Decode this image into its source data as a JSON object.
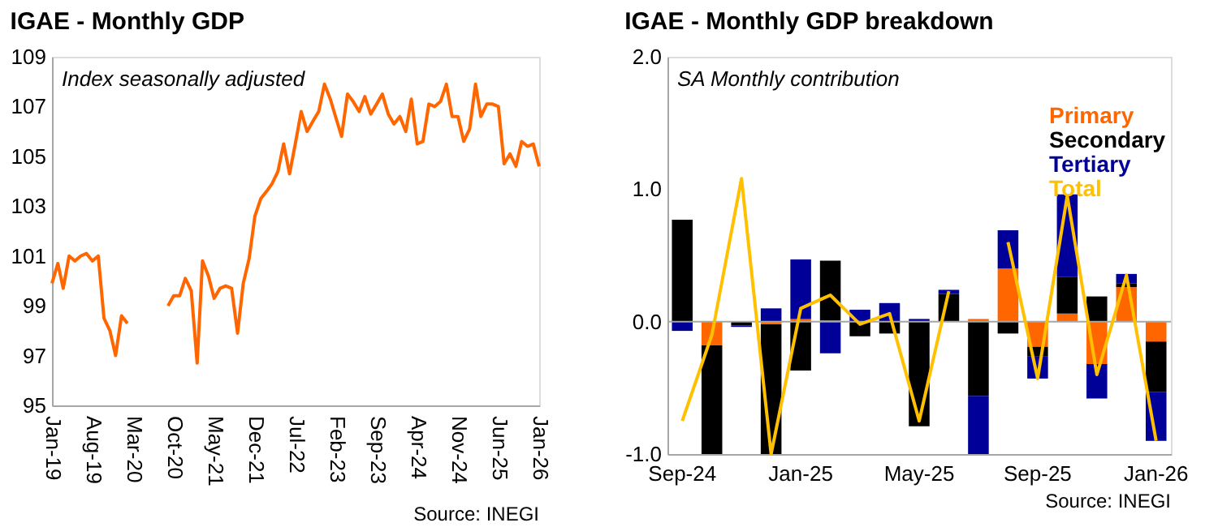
{
  "chart_data": [
    {
      "type": "line",
      "title": "IGAE - Monthly GDP",
      "annotations": [
        "Index seasonally adjusted",
        "Source: INEGI"
      ],
      "x": [
        "2019-01",
        "2019-02",
        "2019-03",
        "2019-04",
        "2019-05",
        "2019-06",
        "2019-07",
        "2019-08",
        "2019-09",
        "2019-10",
        "2019-11",
        "2019-12",
        "2020-01",
        "2020-02",
        "2020-03",
        "2020-04",
        "2020-05",
        "2020-06",
        "2020-07",
        "2020-08",
        "2020-09",
        "2020-10",
        "2020-11",
        "2020-12",
        "2021-01",
        "2021-02",
        "2021-03",
        "2021-04",
        "2021-05",
        "2021-06",
        "2021-07",
        "2021-08",
        "2021-09",
        "2021-10",
        "2021-11",
        "2021-12",
        "2022-01",
        "2022-02",
        "2022-03",
        "2022-04",
        "2022-05",
        "2022-06",
        "2022-07",
        "2022-08",
        "2022-09",
        "2022-10",
        "2022-11",
        "2022-12",
        "2023-01",
        "2023-02",
        "2023-03",
        "2023-04",
        "2023-05",
        "2023-06",
        "2023-07",
        "2023-08",
        "2023-09",
        "2023-10",
        "2023-11",
        "2023-12",
        "2024-01",
        "2024-02",
        "2024-03",
        "2024-04",
        "2024-05",
        "2024-06",
        "2024-07",
        "2024-08",
        "2024-09",
        "2024-10",
        "2024-11",
        "2024-12",
        "2025-01",
        "2025-02",
        "2025-03",
        "2025-04",
        "2025-05",
        "2025-06",
        "2025-07",
        "2025-08",
        "2025-09",
        "2025-10",
        "2025-11",
        "2025-12",
        "2026-01"
      ],
      "series": [
        {
          "color": "#ff6600",
          "values": [
            99.9,
            100.7,
            99.7,
            101.0,
            100.8,
            101.0,
            101.1,
            100.8,
            101.0,
            98.5,
            98.0,
            97.0,
            98.6,
            98.3,
            null,
            null,
            null,
            null,
            null,
            null,
            99.0,
            99.4,
            99.4,
            100.1,
            99.6,
            96.7,
            100.8,
            100.2,
            99.3,
            99.7,
            99.8,
            99.7,
            97.9,
            99.9,
            100.9,
            102.6,
            103.3,
            103.6,
            103.9,
            104.4,
            105.5,
            104.3,
            105.5,
            106.8,
            106.0,
            106.4,
            106.8,
            107.9,
            107.3,
            106.5,
            105.8,
            107.5,
            107.2,
            106.8,
            107.4,
            106.7,
            107.1,
            107.5,
            106.7,
            106.3,
            106.6,
            106.0,
            107.3,
            105.5,
            105.6,
            107.1,
            107.0,
            107.2,
            107.9,
            106.6,
            106.6,
            105.6,
            106.1,
            107.9,
            106.6,
            107.1,
            107.1,
            107.0,
            104.7,
            105.1,
            104.6,
            105.6,
            105.4,
            105.5,
            104.6
          ]
        }
      ],
      "xlim": [
        "2019-01",
        "2026-01"
      ],
      "xticks": [
        {
          "value": "2019-01",
          "label": "Jan-19"
        },
        {
          "value": "2019-08",
          "label": "Aug-19"
        },
        {
          "value": "2020-03",
          "label": "Mar-20"
        },
        {
          "value": "2020-10",
          "label": "Oct-20"
        },
        {
          "value": "2021-05",
          "label": "May-21"
        },
        {
          "value": "2021-12",
          "label": "Dec-21"
        },
        {
          "value": "2022-07",
          "label": "Jul-22"
        },
        {
          "value": "2023-02",
          "label": "Feb-23"
        },
        {
          "value": "2023-09",
          "label": "Sep-23"
        },
        {
          "value": "2024-04",
          "label": "Apr-24"
        },
        {
          "value": "2024-11",
          "label": "Nov-24"
        },
        {
          "value": "2025-06",
          "label": "Jun-25"
        },
        {
          "value": "2026-01",
          "label": "Jan-26"
        }
      ],
      "ylim": [
        95,
        109
      ],
      "yticks": [
        95,
        97,
        99,
        101,
        103,
        105,
        107,
        109
      ]
    },
    {
      "type": "bar",
      "title": "IGAE - Monthly GDP breakdown",
      "stacked": true,
      "legend": "top right",
      "annotations": [
        "SA Monthly contribution",
        "Source: INEGI"
      ],
      "categories": [
        "Sep-24",
        null,
        null,
        null,
        "Jan-25",
        null,
        null,
        null,
        "May-25",
        null,
        null,
        null,
        "Sep-25",
        null,
        null,
        null,
        "Jan-26"
      ],
      "series": [
        {
          "name": "Primary",
          "color": "#ff6600",
          "values": [
            0,
            -0.18,
            0,
            -0.02,
            0.02,
            0.01,
            0,
            null,
            0,
            0,
            0.02,
            0.4,
            -0.19,
            0.06,
            -0.32,
            0.26,
            -0.15
          ]
        },
        {
          "name": "Secondary",
          "color": "#000000",
          "values": [
            0.77,
            -0.82,
            -0.03,
            -0.98,
            -0.37,
            0.45,
            -0.11,
            -0.09,
            -0.79,
            0.21,
            -0.56,
            -0.09,
            -0.07,
            0.28,
            0.19,
            0.03,
            -0.38
          ]
        },
        {
          "name": "Tertiary",
          "color": "#000099",
          "values": [
            -0.07,
            0,
            -0.01,
            0.1,
            0.45,
            -0.24,
            0.09,
            0.14,
            0.02,
            0.03,
            -0.44,
            0.29,
            -0.17,
            0.62,
            -0.26,
            0.07,
            -0.37
          ]
        },
        {
          "name": "Total",
          "type": "line",
          "color": "#ffc000",
          "values": [
            -0.75,
            -0.1,
            1.08,
            -1.0,
            0.1,
            0.2,
            -0.02,
            0.06,
            -0.75,
            0.23,
            null,
            0.6,
            -0.43,
            0.95,
            -0.4,
            0.35,
            -0.9
          ]
        }
      ],
      "ylim": [
        -1,
        2
      ],
      "yticks": [
        {
          "value": -1,
          "label": "-1.0"
        },
        {
          "value": 0,
          "label": "0.0"
        },
        {
          "value": 1,
          "label": "1.0"
        },
        {
          "value": 2,
          "label": "2.0"
        }
      ],
      "ref_lines": [
        {
          "axis": "y",
          "value": 0,
          "color": "#a6a6a6"
        }
      ]
    }
  ]
}
